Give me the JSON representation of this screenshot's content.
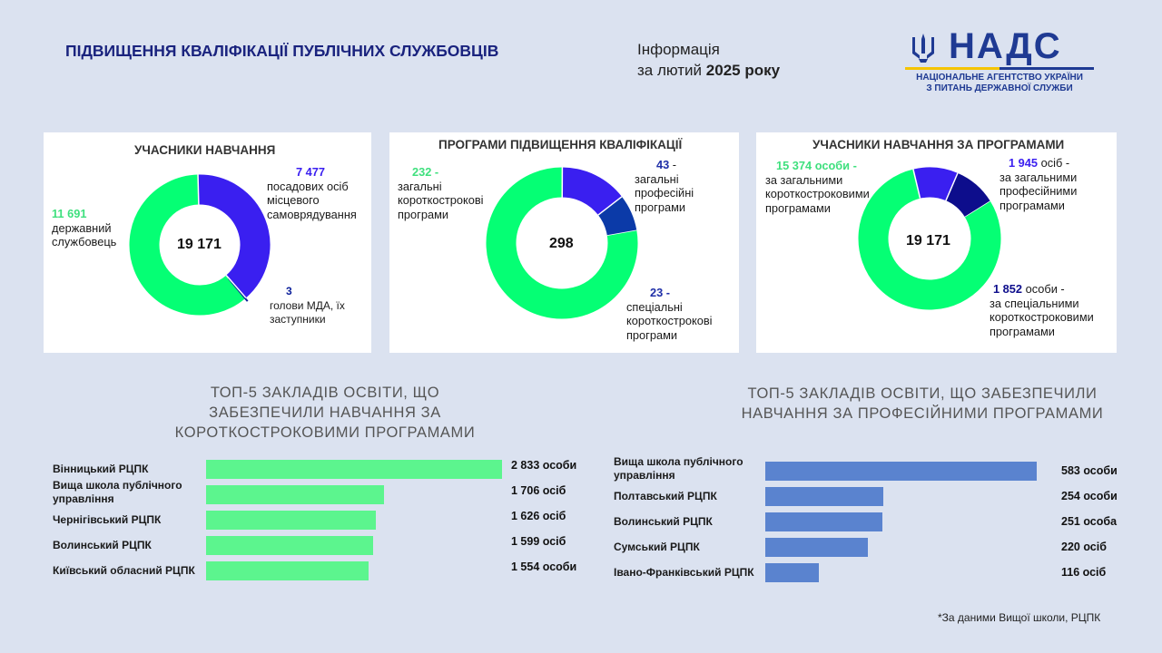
{
  "header": {
    "title": "ПІДВИЩЕННЯ КВАЛІФІКАЦІЇ ПУБЛІЧНИХ СЛУЖБОВЦІВ",
    "info_line1": "Інформація",
    "info_line2_prefix": "за лютий ",
    "info_line2_bold": "2025 року"
  },
  "logo": {
    "name": "НАДС",
    "sub1": "НАЦІОНАЛЬНЕ АГЕНТСТВО УКРАЇНИ",
    "sub2": "З ПИТАНЬ ДЕРЖАВНОЇ СЛУЖБИ",
    "icon": "trident-icon"
  },
  "colors": {
    "green": "#05ff74",
    "purple": "#3a1ff0",
    "darkblue": "#0b1f9a",
    "navy": "#0d0d8c",
    "bar_green": "#5cf58e",
    "bar_blue": "#5a83cf",
    "title_blue": "#1a237e"
  },
  "chart_data": [
    {
      "type": "pie",
      "title": "УЧАСНИКИ НАВЧАННЯ",
      "center": "19 171",
      "slices": [
        {
          "value_label": "11 691",
          "label": "державний службовець",
          "value": 11691,
          "color": "#05ff74"
        },
        {
          "value_label": "7 477",
          "label": "посадових осіб місцевого самоврядування",
          "value": 7477,
          "color": "#3a1ff0"
        },
        {
          "value_label": "3",
          "label": "голови МДА, їх заступники",
          "value": 3,
          "color": "#0b1f9a"
        }
      ]
    },
    {
      "type": "pie",
      "title": "ПРОГРАМИ ПІДВИЩЕННЯ КВАЛІФІКАЦІЇ",
      "center": "298",
      "slices": [
        {
          "value_label": "232 -",
          "label": "загальні короткострокові програми",
          "value": 232,
          "color": "#05ff74"
        },
        {
          "value_label": "43",
          "label": "загальні професійні програми",
          "value": 43,
          "color": "#3a1ff0"
        },
        {
          "value_label": "23 -",
          "label": "спеціальні короткострокові програми",
          "value": 23,
          "color": "#0b3aa8"
        }
      ]
    },
    {
      "type": "pie",
      "title": "УЧАСНИКИ НАВЧАННЯ ЗА ПРОГРАМАМИ",
      "center": "19 171",
      "slices": [
        {
          "value_label": "15 374 особи -",
          "label": "за загальними короткостроковими програмами",
          "value": 15374,
          "color": "#05ff74"
        },
        {
          "value_label": "1 945",
          "label": "за загальними професійними програмами",
          "value": 1945,
          "color": "#3a1ff0"
        },
        {
          "value_label": "1 852",
          "label": "за спеціальними короткостроковими програмами",
          "value": 1852,
          "color": "#0d0d8c"
        }
      ]
    },
    {
      "type": "bar",
      "title": "ТОП-5 ЗАКЛАДІВ ОСВІТИ, ЩО ЗАБЕЗПЕЧИЛИ НАВЧАННЯ ЗА КОРОТКОСТРОКОВИМИ ПРОГРАМАМИ",
      "categories": [
        "Вінницький РЦПК",
        "Вища школа публічного управління",
        "Чернігівський РЦПК",
        "Волинський РЦПК",
        "Київський обласний РЦПК"
      ],
      "values": [
        2833,
        1706,
        1626,
        1599,
        1554
      ],
      "value_labels": [
        "2 833 особи",
        "1 706 осіб",
        "1 626 осіб",
        "1 599 осіб",
        "1 554 особи"
      ],
      "color": "#5cf58e"
    },
    {
      "type": "bar",
      "title": "ТОП-5 ЗАКЛАДІВ ОСВІТИ, ЩО ЗАБЕЗПЕЧИЛИ НАВЧАННЯ ЗА ПРОФЕСІЙНИМИ ПРОГРАМАМИ",
      "categories": [
        "Вища школа публічного управління",
        "Полтавський РЦПК",
        "Волинський РЦПК",
        "Сумський РЦПК",
        "Івано-Франківський РЦПК"
      ],
      "values": [
        583,
        254,
        251,
        220,
        116
      ],
      "value_labels": [
        "583 особи",
        "254 особи",
        "251 особа",
        "220 осіб",
        "116 осіб"
      ],
      "color": "#5a83cf"
    }
  ],
  "pie_labels": {
    "p1": {
      "a_num": "11 691",
      "a_text": "державний службовець",
      "b_num": "7 477",
      "b_text": "посадових осіб місцевого самоврядування",
      "c_num": "3",
      "c_text": "голови МДА, їх заступники"
    },
    "p2": {
      "a_num": "232 -",
      "a_text": "загальні короткострокові програми",
      "b_num": "43",
      "b_suffix": " -",
      "b_text": "загальні професійні програми",
      "c_num": "23 -",
      "c_text": "спеціальні короткострокові програми"
    },
    "p3": {
      "a_num": "15 374 особи -",
      "a_text": "за загальними короткостроковими програмами",
      "b_num": "1 945",
      "b_suffix": " осіб -",
      "b_text": "за загальними професійними програмами",
      "c_num": "1 852",
      "c_suffix": " особи -",
      "c_text": "за спеціальними короткостроковими програмами"
    }
  },
  "footnote": "*За даними Вищої школи, РЦПК"
}
